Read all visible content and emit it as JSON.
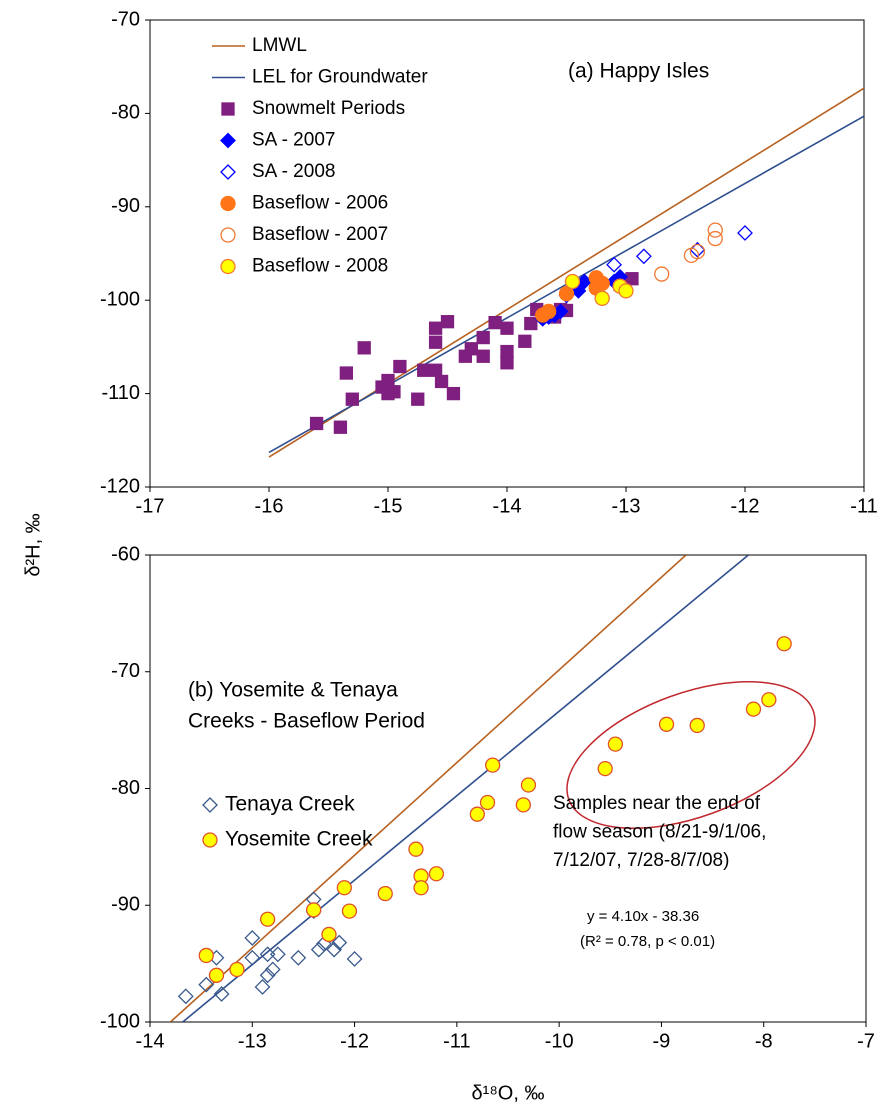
{
  "chart_data": [
    {
      "type": "scatter",
      "annotation": [
        "(a) Happy Isles"
      ],
      "ylabel": "δ²H, ‰",
      "xlim": [
        -17,
        -11
      ],
      "xticks": [
        -17,
        -16,
        -15,
        -14,
        -13,
        -12,
        -11
      ],
      "ylim": [
        -120,
        -70
      ],
      "yticks": [
        -120,
        -110,
        -100,
        -90,
        -80,
        -70
      ],
      "legend": "upper left",
      "series": [
        {
          "name": "LMWL",
          "kind": "line",
          "color": "#b8601f",
          "x": [
            -16,
            -11
          ],
          "values": [
            -116.8,
            -77.3
          ]
        },
        {
          "name": "LEL for Groundwater",
          "kind": "line",
          "color": "#2f4f8f",
          "x": [
            -16,
            -11
          ],
          "values": [
            -116.3,
            -80.3
          ]
        },
        {
          "name": "Snowmelt Periods",
          "kind": "marker",
          "marker": "square",
          "color": "#7f1f7f",
          "fill": "#7f1f7f",
          "x": [
            -15.6,
            -15.4,
            -15.35,
            -15.2,
            -15.3,
            -15.05,
            -15.0,
            -14.95,
            -14.9,
            -15.0,
            -14.75,
            -14.7,
            -14.6,
            -14.6,
            -14.6,
            -14.55,
            -14.5,
            -14.45,
            -14.35,
            -14.3,
            -14.2,
            -14.2,
            -14.1,
            -14.0,
            -14.0,
            -14.0,
            -13.85,
            -13.75,
            -13.8,
            -13.6,
            -13.55,
            -13.5,
            -12.95,
            -13.05
          ],
          "values": [
            -113.2,
            -113.6,
            -107.8,
            -105.1,
            -110.6,
            -109.3,
            -108.6,
            -109.8,
            -107.1,
            -110.0,
            -110.6,
            -107.5,
            -107.5,
            -103.0,
            -104.5,
            -108.7,
            -102.3,
            -110.0,
            -106.0,
            -105.2,
            -104.0,
            -106.0,
            -102.4,
            -103.0,
            -105.5,
            -106.7,
            -104.4,
            -101.0,
            -102.5,
            -101.8,
            -101.0,
            -101.1,
            -97.7,
            -98.3
          ]
        },
        {
          "name": "SA - 2007",
          "kind": "marker",
          "marker": "diamond",
          "color": "#0000ff",
          "fill": "#0000ff",
          "x": [
            -13.7,
            -13.65,
            -13.6,
            -13.55,
            -13.4,
            -13.35,
            -13.1,
            -13.05
          ],
          "values": [
            -102.0,
            -101.8,
            -101.6,
            -101.2,
            -99.0,
            -98.0,
            -98.0,
            -97.5
          ]
        },
        {
          "name": "SA - 2008",
          "kind": "marker",
          "marker": "diamond",
          "color": "#0000ff",
          "fill": "none",
          "x": [
            -13.1,
            -12.85,
            -12.4,
            -12.0,
            -13.5
          ],
          "values": [
            -96.2,
            -95.3,
            -94.6,
            -92.8,
            -99.5
          ]
        },
        {
          "name": "Baseflow - 2006",
          "kind": "marker",
          "marker": "circle",
          "color": "#ff7518",
          "fill": "#ff7518",
          "x": [
            -13.7,
            -13.65,
            -13.5,
            -13.25,
            -13.2,
            -13.25
          ],
          "values": [
            -101.6,
            -101.2,
            -99.3,
            -97.6,
            -98.2,
            -98.7
          ]
        },
        {
          "name": "Baseflow - 2007",
          "kind": "marker",
          "marker": "circle",
          "color": "#f07830",
          "fill": "none",
          "x": [
            -12.7,
            -12.45,
            -12.4,
            -12.25,
            -12.25
          ],
          "values": [
            -97.2,
            -95.2,
            -94.8,
            -92.5,
            -93.4
          ]
        },
        {
          "name": "Baseflow - 2008",
          "kind": "marker",
          "marker": "circle",
          "color": "#f07830",
          "fill": "#ffff00",
          "x": [
            -13.45,
            -13.2,
            -13.05,
            -13.0
          ],
          "values": [
            -98.0,
            -99.8,
            -98.5,
            -99.0
          ]
        }
      ]
    },
    {
      "type": "scatter",
      "annotation": [
        "(b) Yosemite & Tenaya",
        "Creeks - Baseflow Period"
      ],
      "xlabel": "δ¹⁸O, ‰",
      "xlim": [
        -14,
        -7
      ],
      "xticks": [
        -14,
        -13,
        -12,
        -11,
        -10,
        -9,
        -8,
        -7
      ],
      "ylim": [
        -100,
        -60
      ],
      "yticks": [
        -100,
        -90,
        -80,
        -70,
        -60
      ],
      "legend": "upper left",
      "notes": [
        "Samples near the end of",
        "flow season (8/21-9/1/06,",
        "7/12/07, 7/28-8/7/08)"
      ],
      "equation": [
        "y = 4.10x - 38.36",
        "(R² = 0.78, p < 0.01)"
      ],
      "series": [
        {
          "kind": "line",
          "color": "#b8601f",
          "x": [
            -13.8,
            -8.76
          ],
          "values": [
            -100,
            -60
          ]
        },
        {
          "kind": "line",
          "color": "#2f4f8f",
          "x": [
            -13.68,
            -8.15
          ],
          "values": [
            -100,
            -60
          ]
        },
        {
          "name": "Tenaya Creek",
          "kind": "marker",
          "marker": "diamond",
          "color": "#3a5a8c",
          "fill": "none",
          "x": [
            -13.65,
            -13.45,
            -13.35,
            -13.3,
            -13.0,
            -13.0,
            -12.9,
            -12.85,
            -12.85,
            -12.8,
            -12.75,
            -12.55,
            -12.4,
            -12.35,
            -12.3,
            -12.2,
            -12.15,
            -12.0,
            -12.4
          ],
          "values": [
            -97.8,
            -96.8,
            -94.5,
            -97.6,
            -92.8,
            -94.5,
            -97.0,
            -94.2,
            -96.0,
            -95.5,
            -94.2,
            -94.5,
            -89.5,
            -93.8,
            -93.3,
            -93.8,
            -93.2,
            -94.6,
            -90.5
          ]
        },
        {
          "name": "Yosemite Creek",
          "kind": "marker",
          "marker": "circle",
          "color": "#e0502a",
          "fill": "#ffff00",
          "x": [
            -13.45,
            -13.35,
            -13.15,
            -12.85,
            -12.4,
            -12.25,
            -12.1,
            -12.05,
            -11.7,
            -11.4,
            -11.35,
            -11.35,
            -11.2,
            -10.8,
            -10.7,
            -10.65,
            -10.35,
            -10.3,
            -9.55,
            -9.45,
            -8.95,
            -8.65,
            -8.1,
            -7.95,
            -7.8
          ],
          "values": [
            -94.3,
            -96.0,
            -95.5,
            -91.2,
            -90.4,
            -92.5,
            -88.5,
            -90.5,
            -89.0,
            -85.2,
            -87.5,
            -88.5,
            -87.3,
            -82.2,
            -81.2,
            -78.0,
            -81.4,
            -79.7,
            -78.3,
            -76.2,
            -74.5,
            -74.6,
            -73.2,
            -72.4,
            -67.6
          ]
        }
      ]
    }
  ]
}
